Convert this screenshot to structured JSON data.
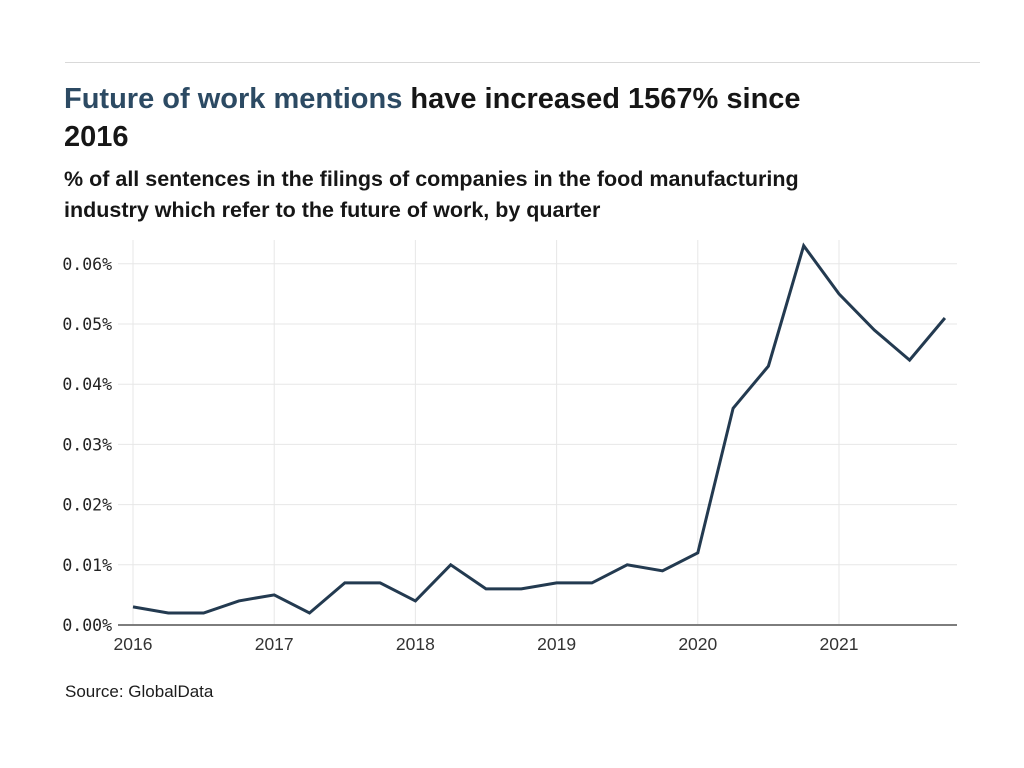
{
  "source": {
    "label": "Source: GlobalData"
  },
  "chart_data": {
    "type": "line",
    "title": "Future of work mentions have increased 1567% since 2016",
    "title_highlight": "Future of work mentions",
    "title_rest": " have increased 1567% since",
    "title_line2": "2016",
    "subtitle": "% of all sentences in the filings of companies in the food manufacturing industry which refer to the future of work, by quarter",
    "subtitle_line1": "% of all sentences in the filings of companies in the food manufacturing",
    "subtitle_line2": "industry which refer to the future of work, by quarter",
    "xlabel": "",
    "ylabel": "",
    "x_ticks": [
      "2016",
      "2017",
      "2018",
      "2019",
      "2020",
      "2021"
    ],
    "y_ticks": [
      "0.00%",
      "0.01%",
      "0.02%",
      "0.03%",
      "0.04%",
      "0.05%",
      "0.06%"
    ],
    "ylim": [
      0,
      0.065
    ],
    "grid": true,
    "legend": "none",
    "categories": [
      "2016 Q1",
      "2016 Q2",
      "2016 Q3",
      "2016 Q4",
      "2017 Q1",
      "2017 Q2",
      "2017 Q3",
      "2017 Q4",
      "2018 Q1",
      "2018 Q2",
      "2018 Q3",
      "2018 Q4",
      "2019 Q1",
      "2019 Q2",
      "2019 Q3",
      "2019 Q4",
      "2020 Q1",
      "2020 Q2",
      "2020 Q3",
      "2020 Q4",
      "2021 Q1",
      "2021 Q2",
      "2021 Q3",
      "2021 Q4"
    ],
    "values": [
      0.003,
      0.002,
      0.002,
      0.004,
      0.005,
      0.002,
      0.007,
      0.007,
      0.004,
      0.01,
      0.006,
      0.006,
      0.007,
      0.007,
      0.01,
      0.009,
      0.012,
      0.036,
      0.043,
      0.063,
      0.055,
      0.049,
      0.044,
      0.051
    ],
    "unit": "% of sentences",
    "colors": {
      "title_highlight": "#2c4a63",
      "series_line": "#233a50",
      "gridline": "#e7e7e7",
      "axis_line": "#7d7d7d",
      "text": "#161616"
    }
  }
}
